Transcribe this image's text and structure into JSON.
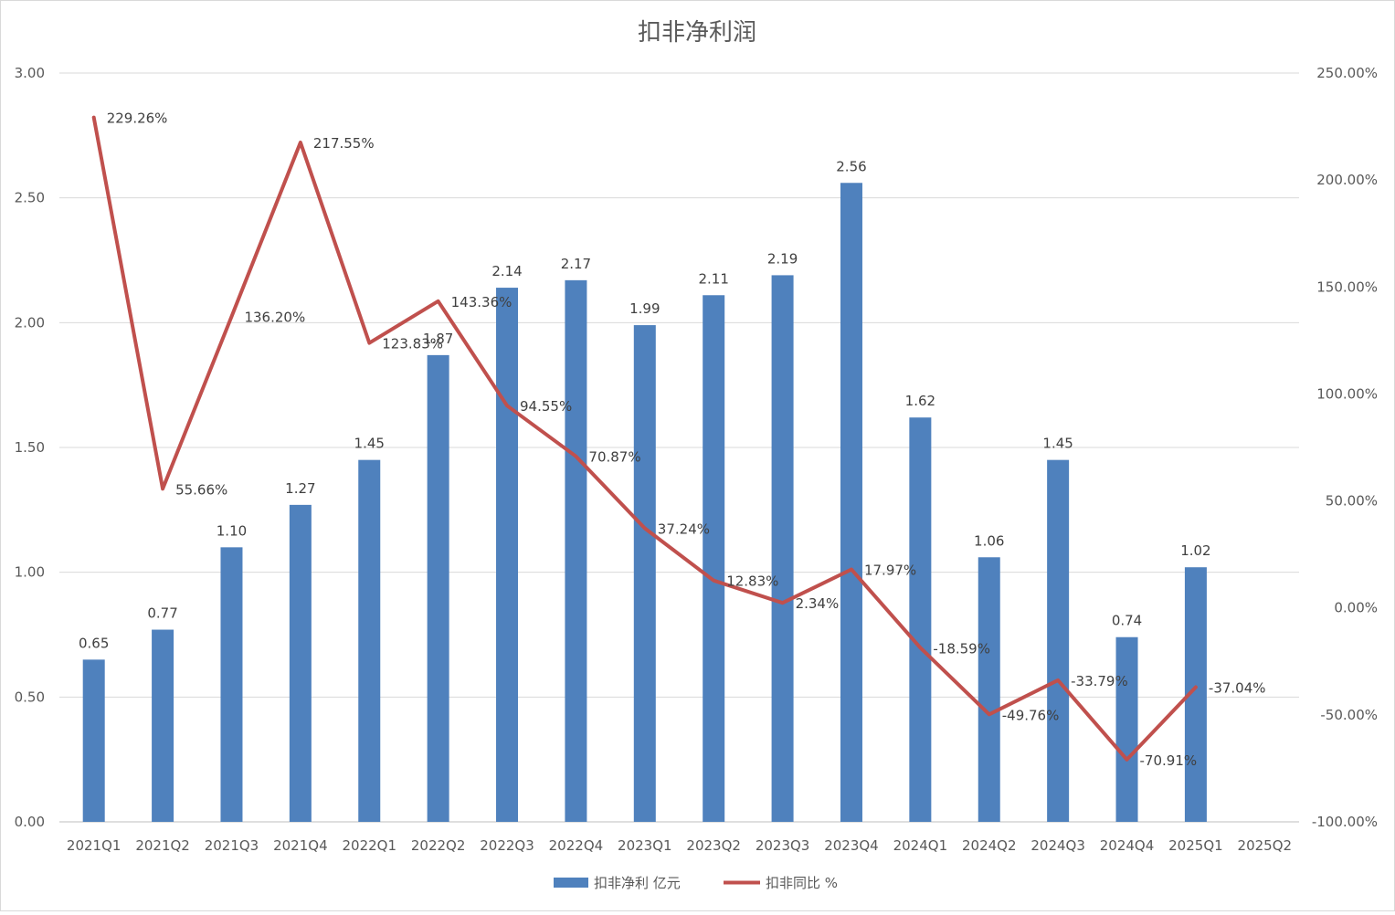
{
  "chart_data": {
    "type": "bar",
    "title": "扣非净利润",
    "categories": [
      "2021Q1",
      "2021Q2",
      "2021Q3",
      "2021Q4",
      "2022Q1",
      "2022Q2",
      "2022Q3",
      "2022Q4",
      "2023Q1",
      "2023Q2",
      "2023Q3",
      "2023Q4",
      "2024Q1",
      "2024Q2",
      "2024Q3",
      "2024Q4",
      "2025Q1",
      "2025Q2"
    ],
    "series": [
      {
        "name": "扣非净利 亿元",
        "type": "bar",
        "axis": "left",
        "color": "#4f81bd",
        "values": [
          0.65,
          0.77,
          1.1,
          1.27,
          1.45,
          1.87,
          2.14,
          2.17,
          1.99,
          2.11,
          2.19,
          2.56,
          1.62,
          1.06,
          1.45,
          0.74,
          1.02,
          null
        ],
        "labels": [
          "0.65",
          "0.77",
          "1.10",
          "1.27",
          "1.45",
          "1.87",
          "2.14",
          "2.17",
          "1.99",
          "2.11",
          "2.19",
          "2.56",
          "1.62",
          "1.06",
          "1.45",
          "0.74",
          "1.02",
          ""
        ]
      },
      {
        "name": "扣非同比 %",
        "type": "line",
        "axis": "right",
        "color": "#c0504d",
        "values": [
          229.26,
          55.66,
          136.2,
          217.55,
          123.83,
          143.36,
          94.55,
          70.87,
          37.24,
          12.83,
          2.34,
          17.97,
          -18.59,
          -49.76,
          -33.79,
          -70.91,
          -37.04,
          null
        ],
        "labels": [
          "229.26%",
          "55.66%",
          "136.20%",
          "217.55%",
          "123.83%",
          "143.36%",
          "94.55%",
          "70.87%",
          "37.24%",
          "12.83%",
          "2.34%",
          "17.97%",
          "-18.59%",
          "-49.76%",
          "-33.79%",
          "-70.91%",
          "-37.04%",
          ""
        ]
      }
    ],
    "y_left": {
      "min": 0,
      "max": 3,
      "ticks": [
        "0.00",
        "0.50",
        "1.00",
        "1.50",
        "2.00",
        "2.50",
        "3.00"
      ]
    },
    "y_right": {
      "min": -100,
      "max": 250,
      "ticks": [
        "-100.00%",
        "-50.00%",
        "0.00%",
        "50.00%",
        "100.00%",
        "150.00%",
        "200.00%",
        "250.00%"
      ]
    },
    "grid": true,
    "legend_position": "bottom"
  }
}
